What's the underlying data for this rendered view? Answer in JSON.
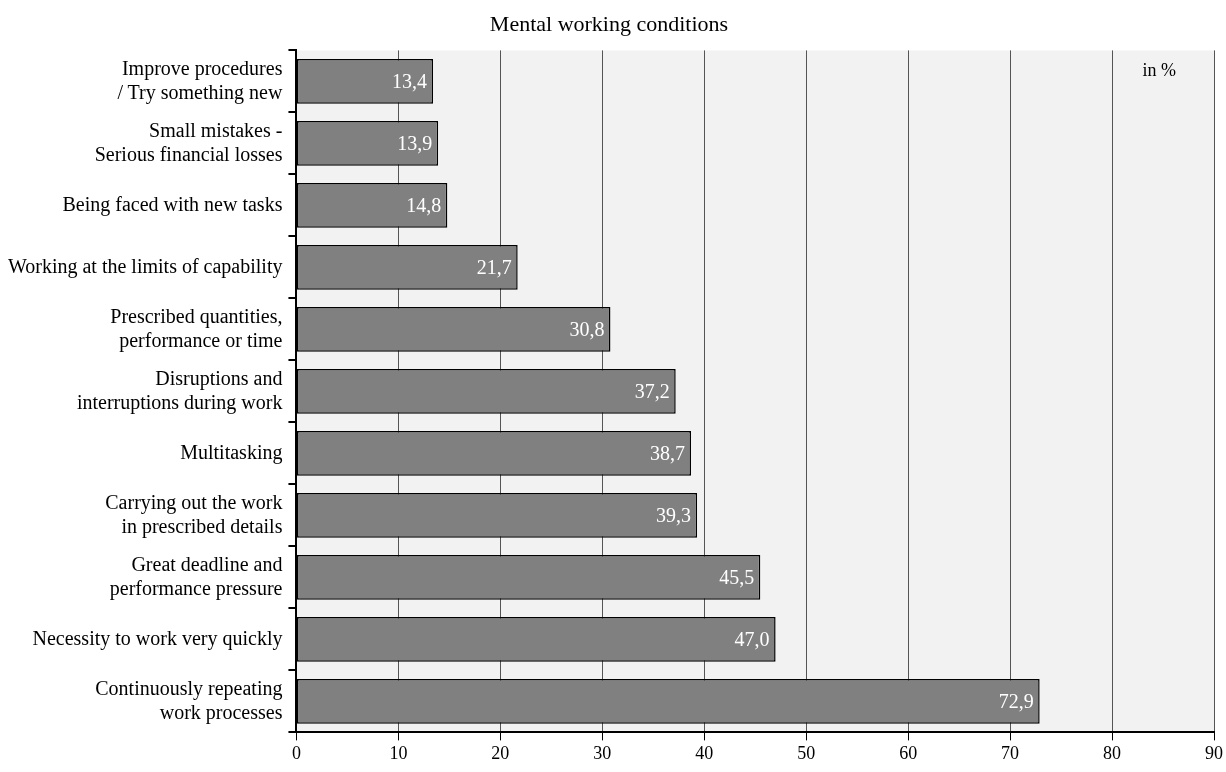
{
  "chart_data": {
    "type": "bar",
    "orientation": "horizontal",
    "title": "Mental working conditions",
    "categories": [
      "Improve procedures / Try something new",
      "Small mistakes - Serious financial losses",
      "Being faced with new tasks",
      "Working at the limits of capability",
      "Prescribed quantities, performance or time",
      "Disruptions and interruptions during work",
      "Multitasking",
      "Carrying out the work in prescribed details",
      "Great deadline and performance pressure",
      "Necessity to work very quickly",
      "Continuously repeating work processes"
    ],
    "values": [
      13.4,
      13.9,
      14.8,
      21.7,
      30.8,
      37.2,
      38.7,
      39.3,
      45.5,
      47.0,
      72.9
    ],
    "value_labels": [
      "13,4",
      "13,9",
      "14,8",
      "21,7",
      "30,8",
      "37,2",
      "38,7",
      "39,3",
      "45,5",
      "47,0",
      "72,9"
    ],
    "color": "#808080",
    "xlim": [
      0,
      90
    ],
    "xticks": [
      0,
      10,
      20,
      30,
      40,
      50,
      60,
      70,
      80,
      90
    ],
    "grid": "x",
    "legend": false,
    "annotations": [
      "in %"
    ]
  }
}
